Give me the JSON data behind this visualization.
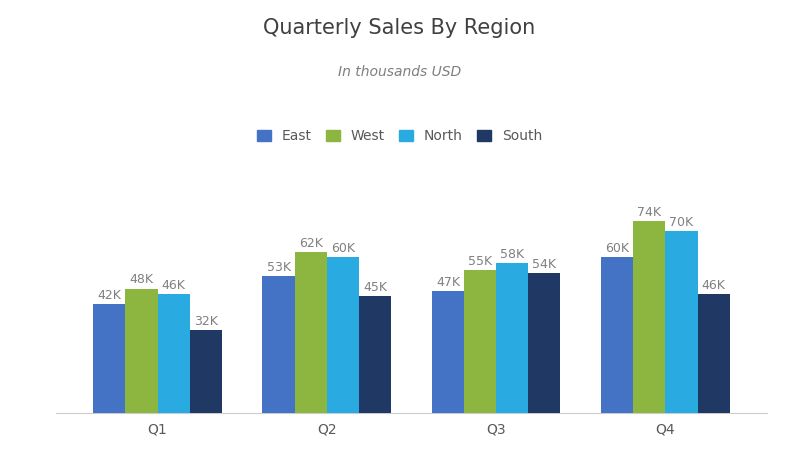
{
  "title": "Quarterly Sales By Region",
  "subtitle": "In thousands USD",
  "categories": [
    "Q1",
    "Q2",
    "Q3",
    "Q4"
  ],
  "regions": [
    "East",
    "West",
    "North",
    "South"
  ],
  "values": {
    "East": [
      42,
      53,
      47,
      60
    ],
    "West": [
      48,
      62,
      55,
      74
    ],
    "North": [
      46,
      60,
      58,
      70
    ],
    "South": [
      32,
      45,
      54,
      46
    ]
  },
  "colors": {
    "East": "#4472C4",
    "West": "#8DB640",
    "North": "#29ABE2",
    "South": "#1F3864"
  },
  "background_color": "#FFFFFF",
  "title_color": "#404040",
  "subtitle_color": "#7F7F7F",
  "label_color": "#595959",
  "xlabel_color": "#595959",
  "bar_label_color": "#808080",
  "title_fontsize": 15,
  "subtitle_fontsize": 10,
  "legend_fontsize": 10,
  "bar_label_fontsize": 9,
  "xlabel_fontsize": 10,
  "ylim": [
    0,
    90
  ],
  "bar_width": 0.19
}
